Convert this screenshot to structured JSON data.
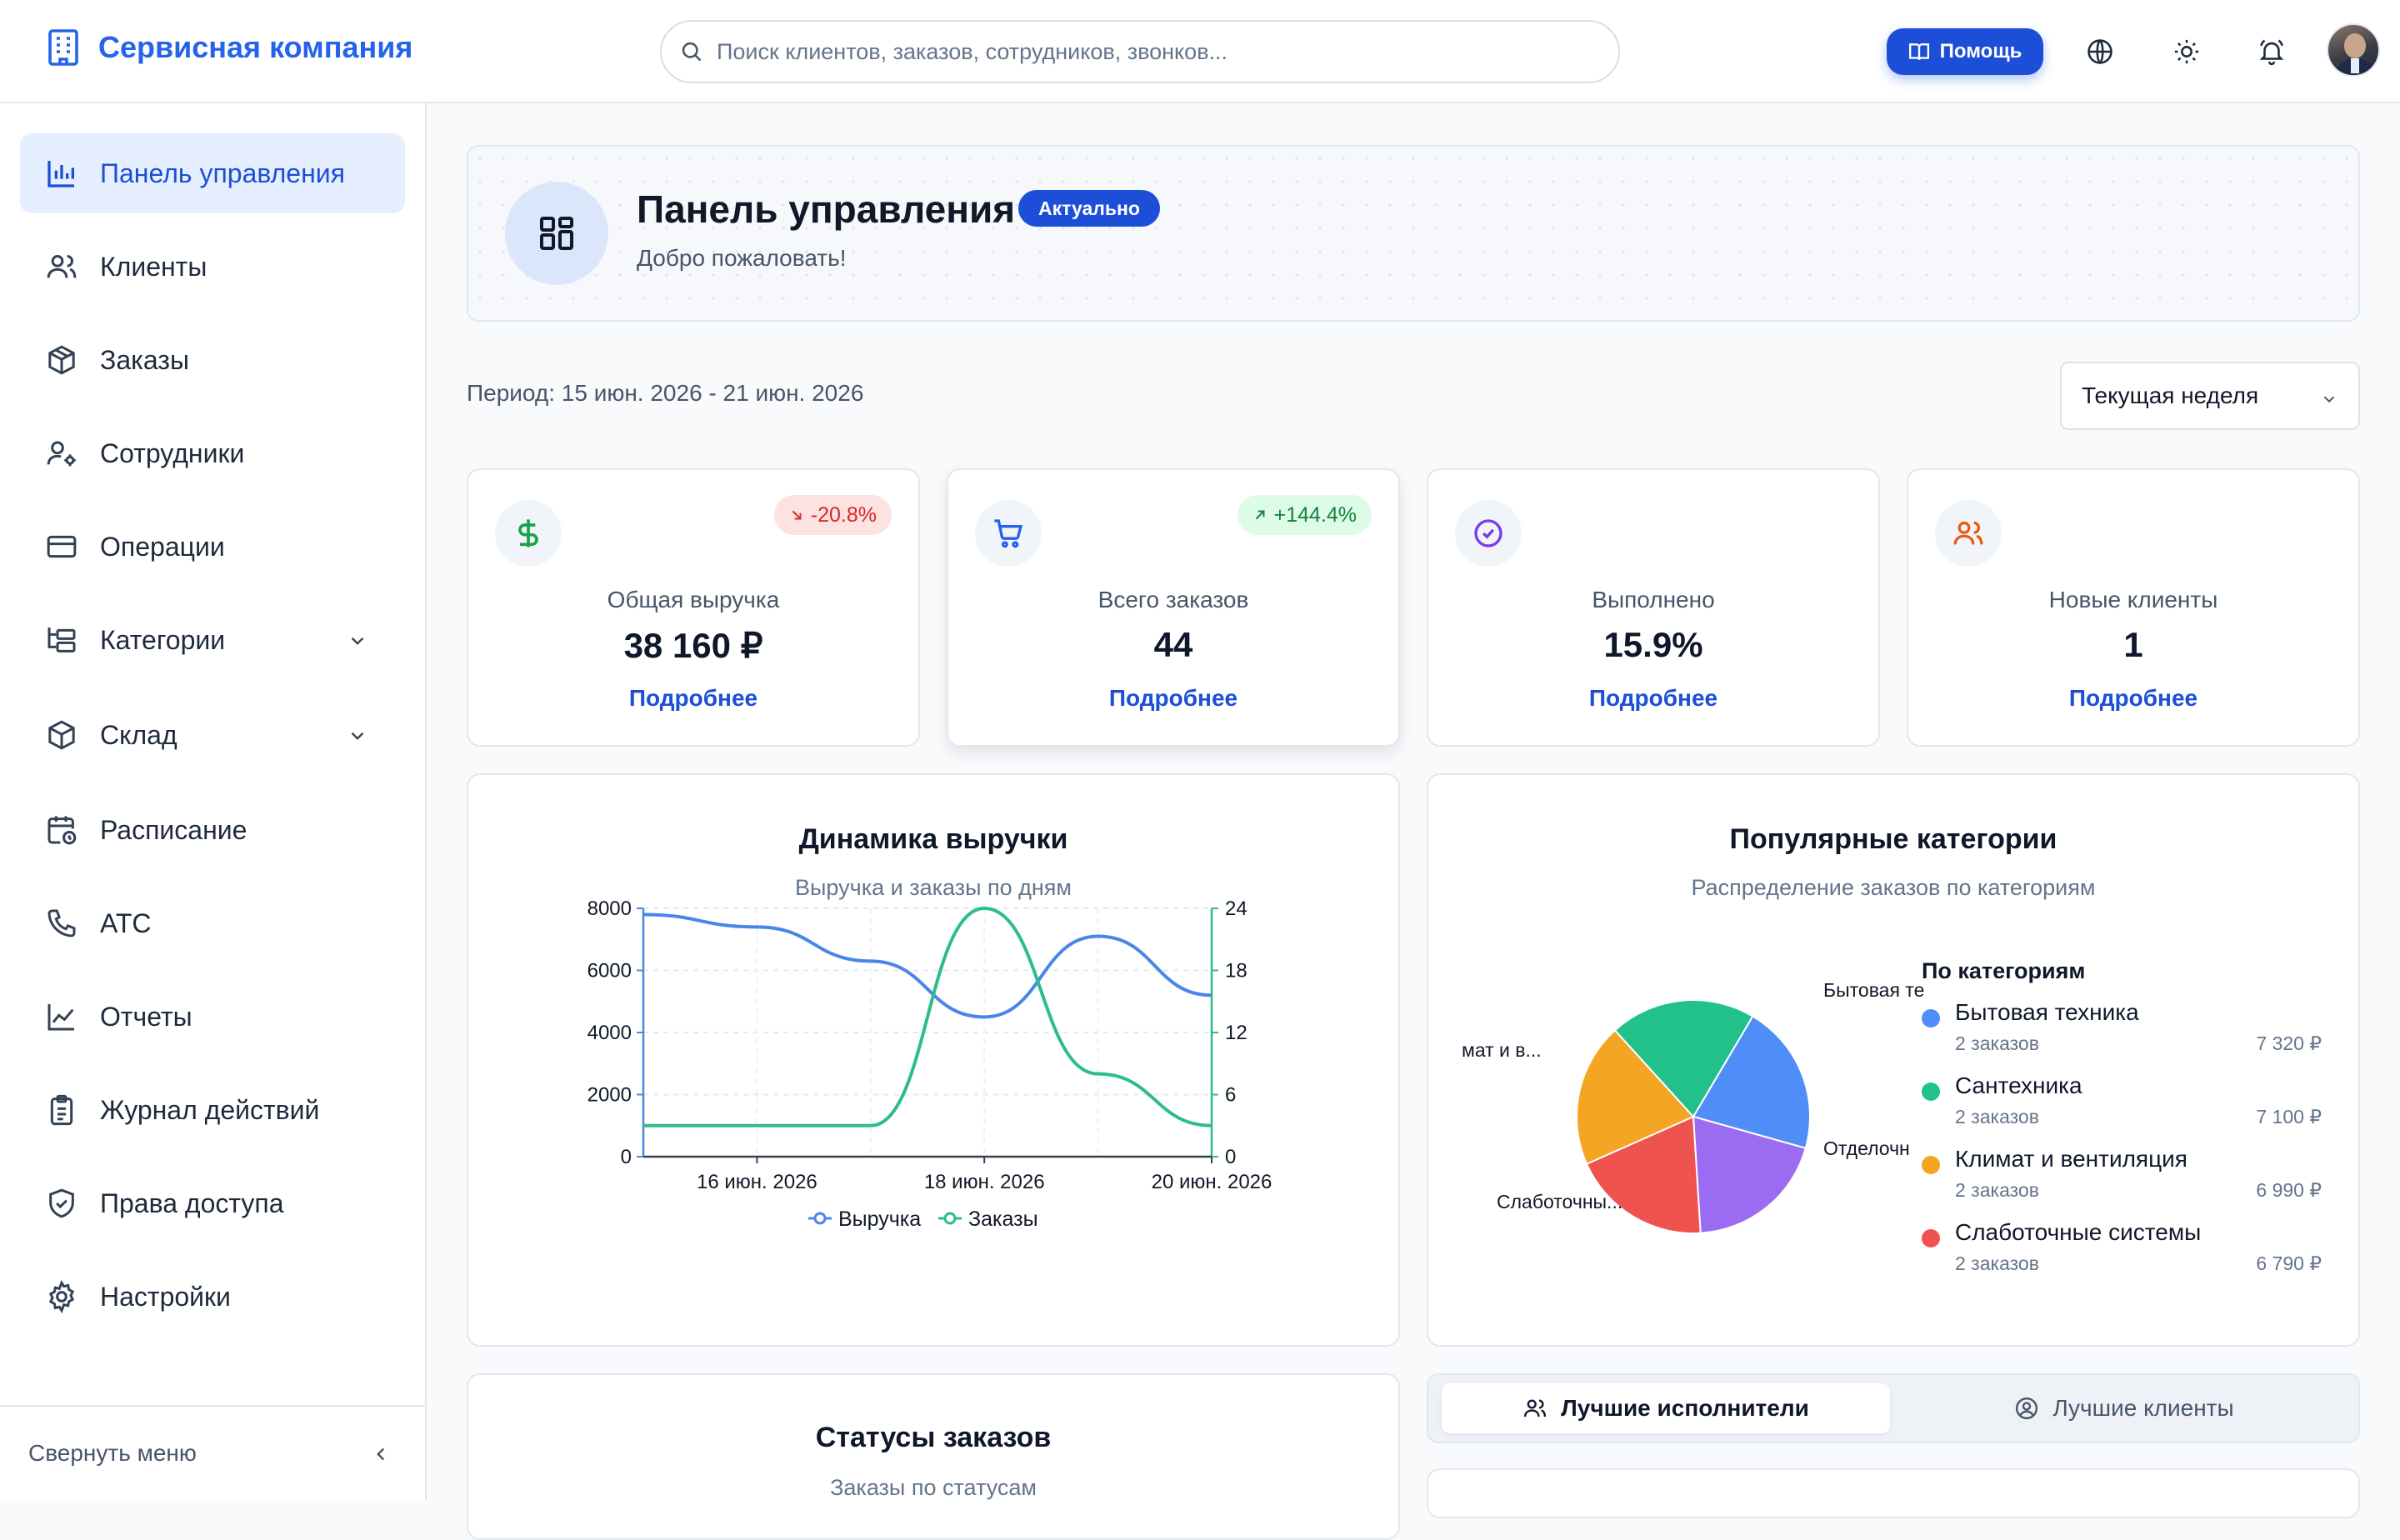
{
  "brand": {
    "title": "Сервисная компания"
  },
  "search": {
    "placeholder": "Поиск клиентов, заказов, сотрудников, звонков..."
  },
  "topbar": {
    "help_label": "Помощь"
  },
  "sidebar": {
    "items": [
      {
        "label": "Панель управления"
      },
      {
        "label": "Клиенты"
      },
      {
        "label": "Заказы"
      },
      {
        "label": "Сотрудники"
      },
      {
        "label": "Операции"
      },
      {
        "label": "Категории"
      },
      {
        "label": "Склад"
      },
      {
        "label": "Расписание"
      },
      {
        "label": "АТС"
      },
      {
        "label": "Отчеты"
      },
      {
        "label": "Журнал действий"
      },
      {
        "label": "Права доступа"
      },
      {
        "label": "Настройки"
      }
    ],
    "collapse_label": "Свернуть меню"
  },
  "header": {
    "title": "Панель управления",
    "badge": "Актуально",
    "subtitle": "Добро пожаловать!"
  },
  "period": {
    "text": "Период: 15 июн. 2026 - 21 июн. 2026",
    "selected": "Текущая неделя"
  },
  "kpis": [
    {
      "label": "Общая выручка",
      "value": "38 160 ₽",
      "trend": "-20.8%",
      "link": "Подробнее"
    },
    {
      "label": "Всего заказов",
      "value": "44",
      "trend": "+144.4%",
      "link": "Подробнее"
    },
    {
      "label": "Выполнено",
      "value": "15.9%",
      "link": "Подробнее"
    },
    {
      "label": "Новые клиенты",
      "value": "1",
      "link": "Подробнее"
    }
  ],
  "revenue_panel": {
    "title": "Динамика выручки",
    "subtitle": "Выручка и заказы по дням"
  },
  "categories_panel": {
    "title": "Популярные категории",
    "subtitle": "Распределение заказов по категориям",
    "legend_title": "По категориям",
    "items": [
      {
        "name": "Бытовая техника",
        "count": "2 заказов",
        "amount": "7 320 ₽",
        "color": "#4f8ef7"
      },
      {
        "name": "Сантехника",
        "count": "2 заказов",
        "amount": "7 100 ₽",
        "color": "#22c08b"
      },
      {
        "name": "Климат и вентиляция",
        "count": "2 заказов",
        "amount": "6 990 ₽",
        "color": "#f5a524"
      },
      {
        "name": "Слаботочные системы",
        "count": "2 заказов",
        "amount": "6 790 ₽",
        "color": "#ef5350"
      }
    ],
    "pie_labels": {
      "sant": "Сантехника",
      "byt": "Бытовая те",
      "klim": "мат и в...",
      "otd": "Отделочн",
      "slab": "Слаботочны..."
    }
  },
  "statuses_panel": {
    "title": "Статусы заказов",
    "subtitle": "Заказы по статусам"
  },
  "tabs": {
    "performers": "Лучшие исполнители",
    "clients": "Лучшие клиенты"
  },
  "colors": {
    "accent": "#1d4ed8",
    "revenue_line": "#4a86e8",
    "orders_line": "#2ebd8a"
  },
  "chart_data": [
    {
      "type": "line",
      "title": "Динамика выручки",
      "x_tick_labels": [
        "16 июн. 2026",
        "18 июн. 2026",
        "20 июн. 2026"
      ],
      "x": [
        "15 июн. 2026",
        "16 июн. 2026",
        "17 июн. 2026",
        "18 июн. 2026",
        "19 июн. 2026",
        "20 июн. 2026"
      ],
      "y_left_ticks": [
        "0",
        "2000",
        "4000",
        "6000",
        "8000"
      ],
      "y_right_ticks": [
        "0",
        "6",
        "12",
        "18",
        "24"
      ],
      "ylim_left": [
        0,
        8000
      ],
      "ylim_right": [
        0,
        24
      ],
      "series": [
        {
          "name": "Выручка",
          "axis": "left",
          "values": [
            7800,
            7400,
            6300,
            4500,
            7100,
            5200
          ]
        },
        {
          "name": "Заказы",
          "axis": "right",
          "values": [
            3,
            3,
            3,
            24,
            8,
            3
          ]
        }
      ],
      "grid": true,
      "legend": "bottom"
    },
    {
      "type": "pie",
      "title": "Популярные категории",
      "slices": [
        {
          "label": "Бытовая техника",
          "value": 7320
        },
        {
          "label": "Отделочные работы",
          "value": 6900
        },
        {
          "label": "Слаботочные системы",
          "value": 6790
        },
        {
          "label": "Климат и вентиляция",
          "value": 6990
        },
        {
          "label": "Сантехника",
          "value": 7100
        }
      ]
    }
  ]
}
